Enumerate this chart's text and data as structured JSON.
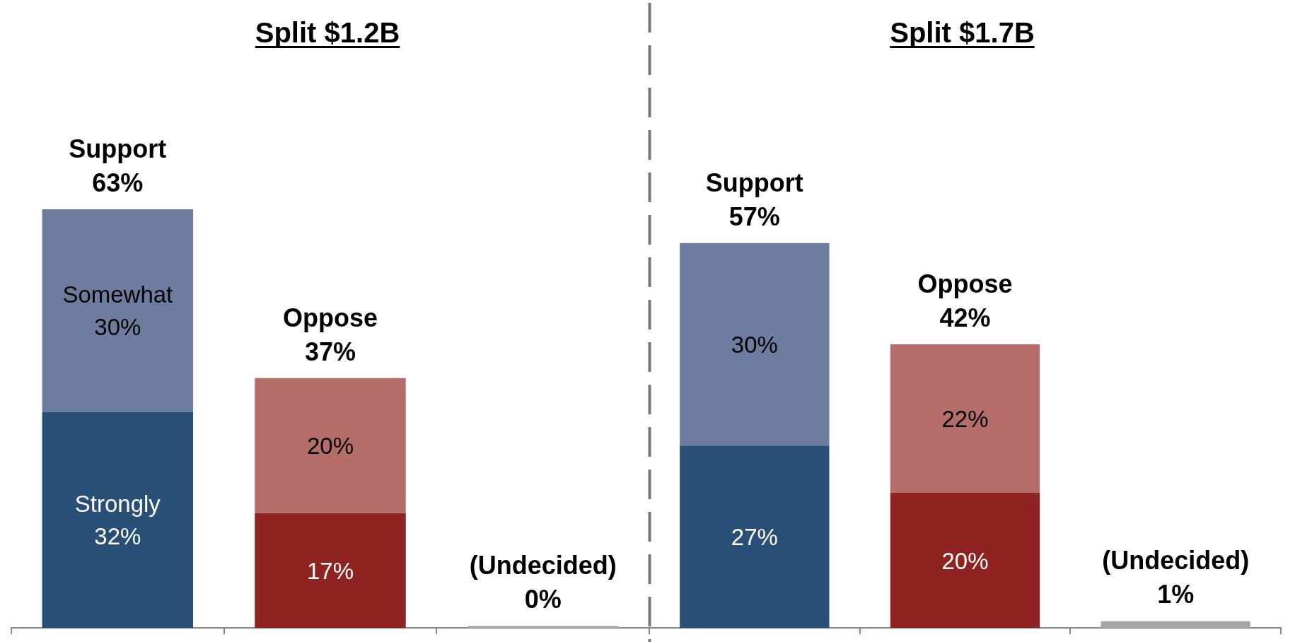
{
  "chart_data": [
    {
      "type": "bar",
      "title": "Split $1.2B",
      "stacked": true,
      "tick_labels": "x",
      "categories": [
        "Support",
        "Oppose",
        "(Undecided)"
      ],
      "series": [
        {
          "name": "Strongly",
          "color": "#294f77",
          "values": [
            32,
            null,
            null
          ],
          "value_labels": [
            "32%",
            null,
            null
          ]
        },
        {
          "name": "Somewhat",
          "color": "#6d7c9f",
          "values": [
            30,
            null,
            null
          ],
          "value_labels": [
            "30%",
            null,
            null
          ]
        },
        {
          "color": "#8e2321",
          "values": [
            null,
            17,
            null
          ],
          "value_labels": [
            null,
            "17%",
            null
          ]
        },
        {
          "color": "#b46d69",
          "values": [
            null,
            20,
            null
          ],
          "value_labels": [
            null,
            "20%",
            null
          ]
        },
        {
          "color": "#a6a6a6",
          "values": [
            null,
            null,
            0.3
          ]
        }
      ],
      "totals": [
        "63%",
        "37%",
        "0%"
      ]
    },
    {
      "type": "bar",
      "title": "Split $1.7B",
      "stacked": true,
      "tick_labels": "x",
      "categories": [
        "Support",
        "Oppose",
        "(Undecided)"
      ],
      "series": [
        {
          "color": "#294f77",
          "values": [
            27,
            null,
            null
          ],
          "value_labels": [
            "27%",
            null,
            null
          ]
        },
        {
          "color": "#6d7c9f",
          "values": [
            30,
            null,
            null
          ],
          "value_labels": [
            "30%",
            null,
            null
          ]
        },
        {
          "color": "#8e2321",
          "values": [
            null,
            20,
            null
          ],
          "value_labels": [
            null,
            "20%",
            null
          ]
        },
        {
          "color": "#b46d69",
          "values": [
            null,
            22,
            null
          ],
          "value_labels": [
            null,
            "22%",
            null
          ]
        },
        {
          "color": "#a6a6a6",
          "values": [
            null,
            null,
            1
          ]
        }
      ],
      "totals": [
        "57%",
        "42%",
        "1%"
      ]
    }
  ]
}
